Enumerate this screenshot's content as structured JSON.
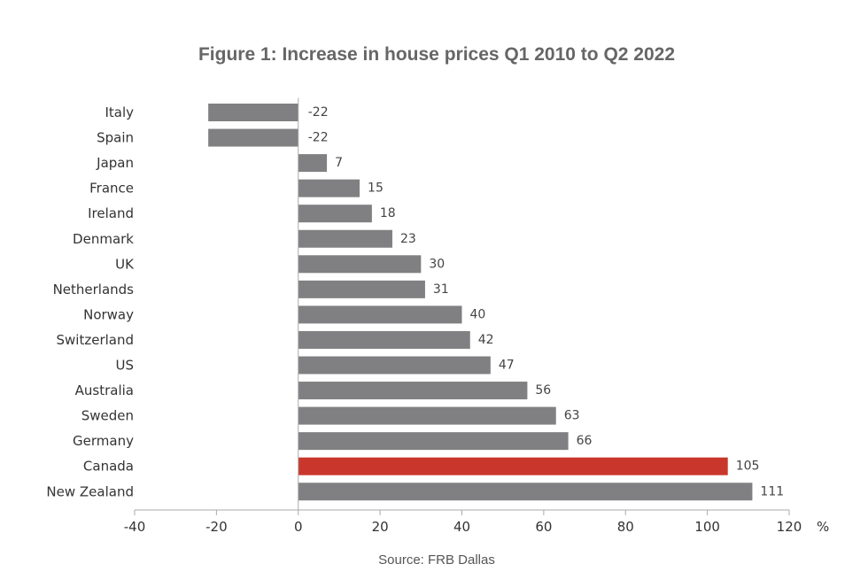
{
  "chart_data": {
    "type": "bar",
    "orientation": "horizontal",
    "title": "Figure 1: Increase in house prices Q1 2010 to Q2 2022",
    "source": "Source: FRB Dallas",
    "categories": [
      "Italy",
      "Spain",
      "Japan",
      "France",
      "Ireland",
      "Denmark",
      "UK",
      "Netherlands",
      "Norway",
      "Switzerland",
      "US",
      "Australia",
      "Sweden",
      "Germany",
      "Canada",
      "New Zealand"
    ],
    "values": [
      -22,
      -22,
      7,
      15,
      18,
      23,
      30,
      31,
      40,
      42,
      47,
      56,
      63,
      66,
      105,
      111
    ],
    "value_labels": [
      "-22",
      "-22",
      "7",
      "15",
      "18",
      "23",
      "30",
      "31",
      "40",
      "42",
      "47",
      "56",
      "63",
      "66",
      "105",
      "111"
    ],
    "highlight_category": "Canada",
    "xlim": [
      -40,
      120
    ],
    "xticks": [
      -40,
      -20,
      0,
      20,
      40,
      60,
      80,
      100,
      120
    ],
    "xtick_labels": [
      "-40",
      "-20",
      "0",
      "20",
      "40",
      "60",
      "80",
      "100",
      "120"
    ],
    "x_unit": "%",
    "grid": false,
    "legend": "none",
    "colors": {
      "bar": "#808083",
      "highlight": "#c9372c",
      "axis": "#aaaaaa"
    }
  }
}
